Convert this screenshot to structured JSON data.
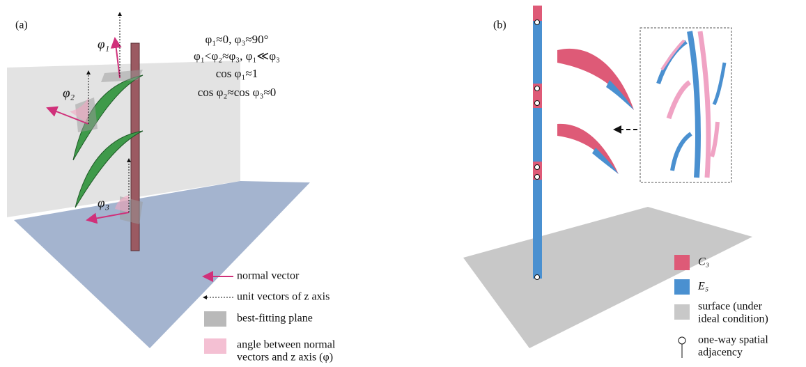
{
  "panel_a": {
    "label": "(a)",
    "angles": [
      "φ₁",
      "φ₂",
      "φ₃"
    ],
    "equations": [
      "φ₁≈0, φ₃≈90°",
      "φ₁<φ₂≈φ₃, φ₁≪φ₃",
      "cos φ₁≈1",
      "cos φ₂≈cos φ₃≈0"
    ],
    "legend": [
      {
        "lines": [
          "normal vector"
        ]
      },
      {
        "lines": [
          "unit vectors of z axis"
        ]
      },
      {
        "lines": [
          "best-fitting plane"
        ]
      },
      {
        "lines": [
          "angle between normal",
          "vectors and z axis (φ)"
        ]
      }
    ]
  },
  "panel_b": {
    "label": "(b)",
    "legend": [
      {
        "lines": [
          "C₃"
        ]
      },
      {
        "lines": [
          "E₅"
        ]
      },
      {
        "lines": [
          "surface (under",
          "ideal condition)"
        ]
      },
      {
        "lines": [
          "one-way spatial",
          "adjacency"
        ]
      }
    ]
  }
}
